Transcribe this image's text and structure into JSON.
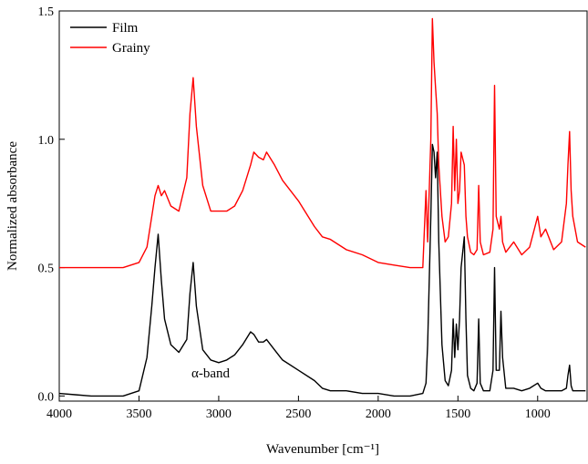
{
  "chart_data": {
    "type": "line",
    "x_label": "Wavenumber [cm⁻¹]",
    "y_label": "Normalized absorbance",
    "annotation": "α-band",
    "xlim": [
      4000,
      690
    ],
    "ylim": [
      -0.02,
      1.5
    ],
    "xticks": [
      4000,
      3500,
      3000,
      2500,
      2000,
      1500,
      1000
    ],
    "yticks": [
      {
        "value": 0,
        "label": "0.0"
      },
      0.5,
      {
        "value": 1,
        "label": "1.0"
      },
      1.5
    ],
    "legend": "upper left",
    "x": [
      4000,
      3900,
      3800,
      3700,
      3600,
      3500,
      3450,
      3420,
      3400,
      3380,
      3360,
      3340,
      3300,
      3250,
      3200,
      3180,
      3160,
      3140,
      3100,
      3050,
      3000,
      2950,
      2900,
      2850,
      2800,
      2780,
      2750,
      2720,
      2700,
      2650,
      2600,
      2500,
      2400,
      2350,
      2300,
      2200,
      2100,
      2000,
      1900,
      1800,
      1720,
      1700,
      1690,
      1670,
      1660,
      1650,
      1640,
      1630,
      1620,
      1600,
      1580,
      1560,
      1540,
      1530,
      1520,
      1510,
      1500,
      1490,
      1480,
      1460,
      1450,
      1440,
      1420,
      1400,
      1380,
      1370,
      1360,
      1340,
      1300,
      1280,
      1270,
      1260,
      1240,
      1230,
      1220,
      1200,
      1150,
      1100,
      1050,
      1000,
      980,
      950,
      900,
      850,
      820,
      810,
      800,
      790,
      780,
      750,
      700
    ],
    "series": [
      {
        "name": "Film",
        "color": "#000000",
        "values": [
          0.01,
          0.005,
          0,
          0,
          0,
          0.02,
          0.15,
          0.35,
          0.5,
          0.63,
          0.45,
          0.3,
          0.2,
          0.17,
          0.22,
          0.4,
          0.52,
          0.35,
          0.18,
          0.14,
          0.13,
          0.14,
          0.16,
          0.2,
          0.25,
          0.24,
          0.21,
          0.21,
          0.22,
          0.18,
          0.14,
          0.1,
          0.06,
          0.03,
          0.02,
          0.02,
          0.01,
          0.01,
          0,
          0,
          0.01,
          0.05,
          0.2,
          0.7,
          0.98,
          0.95,
          0.85,
          0.95,
          0.6,
          0.2,
          0.06,
          0.04,
          0.1,
          0.3,
          0.15,
          0.28,
          0.18,
          0.3,
          0.5,
          0.62,
          0.3,
          0.08,
          0.03,
          0.02,
          0.05,
          0.3,
          0.05,
          0.02,
          0.02,
          0.1,
          0.5,
          0.1,
          0.1,
          0.33,
          0.15,
          0.03,
          0.03,
          0.02,
          0.03,
          0.05,
          0.03,
          0.02,
          0.02,
          0.02,
          0.03,
          0.08,
          0.12,
          0.04,
          0.02,
          0.02,
          0.02
        ]
      },
      {
        "name": "Grainy",
        "color": "#ff0000",
        "values": [
          0.5,
          0.5,
          0.5,
          0.5,
          0.5,
          0.52,
          0.58,
          0.7,
          0.78,
          0.82,
          0.78,
          0.8,
          0.74,
          0.72,
          0.85,
          1.1,
          1.24,
          1.05,
          0.82,
          0.72,
          0.72,
          0.72,
          0.74,
          0.8,
          0.9,
          0.95,
          0.93,
          0.92,
          0.95,
          0.9,
          0.84,
          0.76,
          0.66,
          0.62,
          0.61,
          0.57,
          0.55,
          0.52,
          0.51,
          0.5,
          0.5,
          0.8,
          0.6,
          1.0,
          1.47,
          1.3,
          1.2,
          1.1,
          0.9,
          0.7,
          0.6,
          0.62,
          0.75,
          1.05,
          0.8,
          1.0,
          0.75,
          0.8,
          0.95,
          0.9,
          0.7,
          0.62,
          0.56,
          0.55,
          0.57,
          0.82,
          0.6,
          0.55,
          0.56,
          0.65,
          1.21,
          0.7,
          0.65,
          0.7,
          0.6,
          0.56,
          0.6,
          0.55,
          0.58,
          0.7,
          0.62,
          0.65,
          0.57,
          0.6,
          0.75,
          0.9,
          1.03,
          0.8,
          0.7,
          0.6,
          0.58
        ]
      }
    ]
  }
}
